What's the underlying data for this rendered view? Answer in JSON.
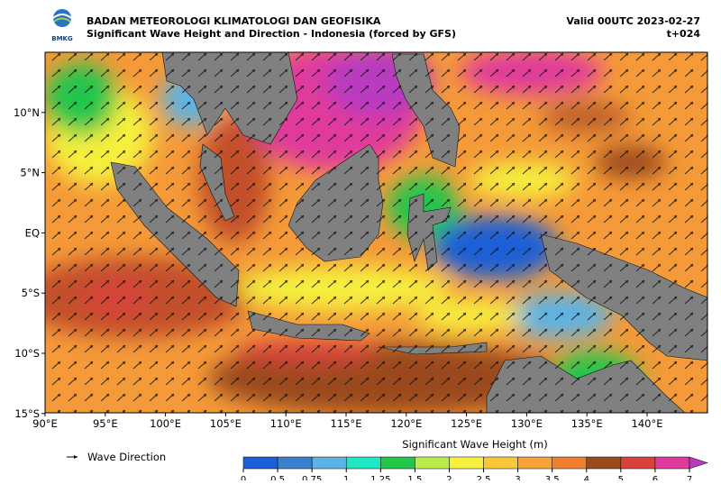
{
  "header": {
    "agency": "BADAN METEOROLOGI KLIMATOLOGI DAN GEOFISIKA",
    "subtitle": "Significant Wave Height and Direction - Indonesia (forced by GFS)",
    "valid": "Valid 00UTC 2023-02-27",
    "lead": "t+024",
    "logo_text": "BMKG"
  },
  "map": {
    "lon_ticks": [
      {
        "value": 90,
        "label": "90°E"
      },
      {
        "value": 95,
        "label": "95°E"
      },
      {
        "value": 100,
        "label": "100°E"
      },
      {
        "value": 105,
        "label": "105°E"
      },
      {
        "value": 110,
        "label": "110°E"
      },
      {
        "value": 115,
        "label": "115°E"
      },
      {
        "value": 120,
        "label": "120°E"
      },
      {
        "value": 125,
        "label": "125°E"
      },
      {
        "value": 130,
        "label": "130°E"
      },
      {
        "value": 135,
        "label": "135°E"
      },
      {
        "value": 140,
        "label": "140°E"
      }
    ],
    "lat_ticks": [
      {
        "value": 10,
        "label": "10°N"
      },
      {
        "value": 5,
        "label": "5°N"
      },
      {
        "value": 0,
        "label": "EQ"
      },
      {
        "value": -5,
        "label": "5°S"
      },
      {
        "value": -10,
        "label": "10°S"
      },
      {
        "value": -15,
        "label": "15°S"
      }
    ]
  },
  "legend": {
    "arrow_label": "Wave Direction"
  },
  "colorbar": {
    "title": "Significant Wave Height (m)",
    "ticks": [
      {
        "value": 0,
        "label": "0"
      },
      {
        "value": 0.5,
        "label": "0.5"
      },
      {
        "value": 0.75,
        "label": "0.75"
      },
      {
        "value": 1,
        "label": "1"
      },
      {
        "value": 1.25,
        "label": "1.25"
      },
      {
        "value": 1.5,
        "label": "1.5"
      },
      {
        "value": 2,
        "label": "2"
      },
      {
        "value": 2.5,
        "label": "2.5"
      },
      {
        "value": 3,
        "label": "3"
      },
      {
        "value": 3.5,
        "label": "3.5"
      },
      {
        "value": 4,
        "label": "4"
      },
      {
        "value": 5,
        "label": "5"
      },
      {
        "value": 6,
        "label": "6"
      },
      {
        "value": 7,
        "label": "7"
      }
    ],
    "colors": [
      "#1b5fd6",
      "#3a80cf",
      "#5bb3e6",
      "#1fe6c3",
      "#22c64b",
      "#b8ec4c",
      "#f6f03c",
      "#f8c73a",
      "#f6a33a",
      "#f08030",
      "#9a4a1c",
      "#d8423a",
      "#e03a9c",
      "#b83ac0"
    ]
  }
}
